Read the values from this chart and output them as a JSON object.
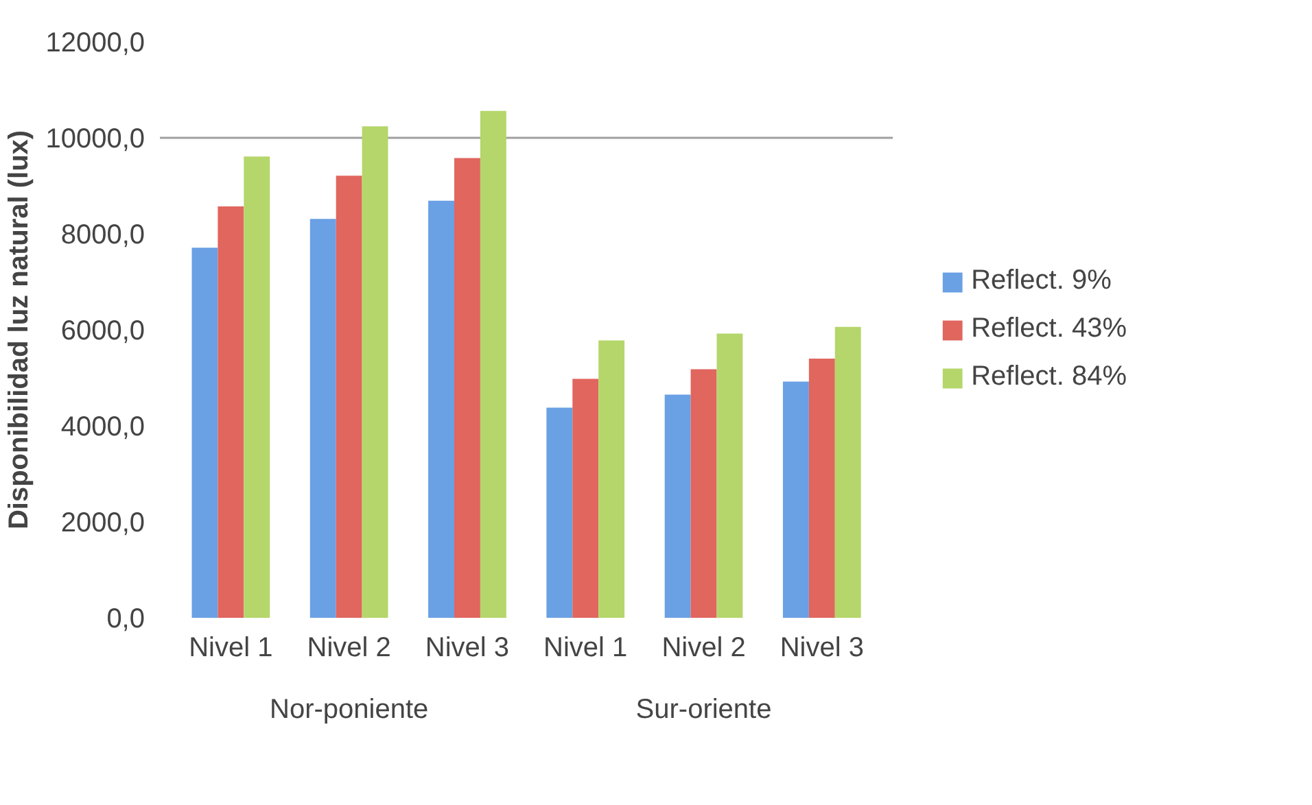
{
  "chart_data": {
    "type": "bar",
    "ylabel": "Disponibilidad luz natural (lux)",
    "categories": [
      "Nivel 1",
      "Nivel 2",
      "Nivel 3",
      "Nivel 1",
      "Nivel 2",
      "Nivel 3"
    ],
    "annotations": [
      "Nor-poniente",
      "Sur-oriente"
    ],
    "series": [
      {
        "name": "Reflect. 9%",
        "color": "#6aa0e4",
        "values": [
          7710,
          8310,
          8690,
          4380,
          4650,
          4920
        ]
      },
      {
        "name": "Reflect. 43%",
        "color": "#e0665e",
        "values": [
          8570,
          9210,
          9580,
          4980,
          5180,
          5400
        ]
      },
      {
        "name": "Reflect. 84%",
        "color": "#b5d66a",
        "values": [
          9610,
          10240,
          10560,
          5780,
          5920,
          6060
        ]
      }
    ],
    "ylim": [
      0,
      12000
    ],
    "yticks": [
      {
        "value": 0,
        "label": "0,0"
      },
      {
        "value": 2000,
        "label": "2000,0"
      },
      {
        "value": 4000,
        "label": "4000,0"
      },
      {
        "value": 6000,
        "label": "6000,0"
      },
      {
        "value": 8000,
        "label": "8000,0"
      },
      {
        "value": 10000,
        "label": "10000,0"
      },
      {
        "value": 12000,
        "label": "12000,0"
      }
    ],
    "ref_lines": [
      {
        "axis": "y",
        "value": 10000,
        "color": "#a0a0a0"
      }
    ],
    "grid": false,
    "legend": "right"
  }
}
